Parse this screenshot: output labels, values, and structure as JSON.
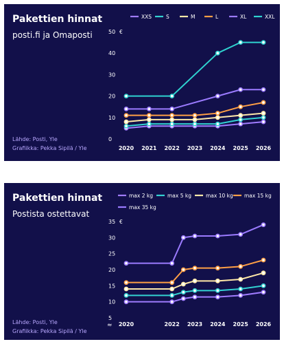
{
  "charts": [
    {
      "title": "Pakettien hinnat",
      "subtitle": "posti.fi ja Omaposti",
      "source": "Lähde: Posti, Yle",
      "credit": "Grafiikka: Pekka Sipilä  / Yle"
    },
    {
      "title": "Pakettien hinnat",
      "subtitle": "Postista ostettavat",
      "source": "Lähde: Posti, Yle",
      "credit": "Grafiikka: Pekka Sipilä  / Yle"
    }
  ],
  "chart_data": [
    {
      "type": "line",
      "title": "Pakettien hinnat",
      "subtitle": "posti.fi ja Omaposti",
      "unit": "€",
      "ylim": [
        0,
        50
      ],
      "yticks": [
        0,
        10,
        20,
        30,
        40,
        50
      ],
      "x": [
        2020,
        2021,
        2022,
        2023,
        2024,
        2025,
        2026
      ],
      "xlim": [
        2020,
        2026
      ],
      "grid": false,
      "legend_position": "top",
      "series": [
        {
          "name": "XXS",
          "color": "#a07cff",
          "values": [
            5,
            6,
            6,
            6,
            6,
            7,
            8
          ]
        },
        {
          "name": "S",
          "color": "#33d2d2",
          "values": [
            6,
            7,
            7,
            7,
            7,
            9,
            10
          ]
        },
        {
          "name": "M",
          "color": "#ffe9a8",
          "values": [
            8,
            9,
            9,
            9,
            10,
            11,
            12
          ]
        },
        {
          "name": "L",
          "color": "#ff9f45",
          "values": [
            11,
            11,
            11,
            11,
            12,
            15,
            17
          ]
        },
        {
          "name": "XL",
          "color": "#9b7bff",
          "values": [
            14,
            14,
            14,
            null,
            20,
            23,
            23
          ]
        },
        {
          "name": "XXL",
          "color": "#2fd3d0",
          "values": [
            20,
            null,
            20,
            null,
            40,
            45,
            45
          ]
        }
      ]
    },
    {
      "type": "line",
      "title": "Pakettien hinnat",
      "subtitle": "Postista ostettavat",
      "unit": "€",
      "ylim": [
        5,
        35
      ],
      "yticks": [
        5,
        10,
        15,
        20,
        25,
        30,
        35
      ],
      "axis_break": true,
      "x": [
        2020,
        2022,
        2022.5,
        2023,
        2024,
        2025,
        2026
      ],
      "xticks": [
        2020,
        2022,
        2023,
        2024,
        2025,
        2026
      ],
      "xlim": [
        2020,
        2026
      ],
      "grid": false,
      "legend_position": "top",
      "series": [
        {
          "name": "max 2 kg",
          "color": "#a07cff",
          "values": [
            10,
            10,
            11,
            11.5,
            11.5,
            12,
            13
          ]
        },
        {
          "name": "max 5 kg",
          "color": "#33d2d2",
          "values": [
            12,
            12,
            13,
            13.5,
            13.5,
            14,
            15
          ]
        },
        {
          "name": "max 10 kg",
          "color": "#ffe9a8",
          "values": [
            14,
            14,
            15.5,
            16.5,
            16.5,
            17,
            19
          ]
        },
        {
          "name": "max 15 kg",
          "color": "#ff9f45",
          "values": [
            16,
            16,
            20,
            20.5,
            20.5,
            21,
            23
          ]
        },
        {
          "name": "max 35 kg",
          "color": "#9b7bff",
          "values": [
            22,
            22,
            30,
            30.5,
            30.5,
            31,
            34
          ]
        }
      ]
    }
  ]
}
